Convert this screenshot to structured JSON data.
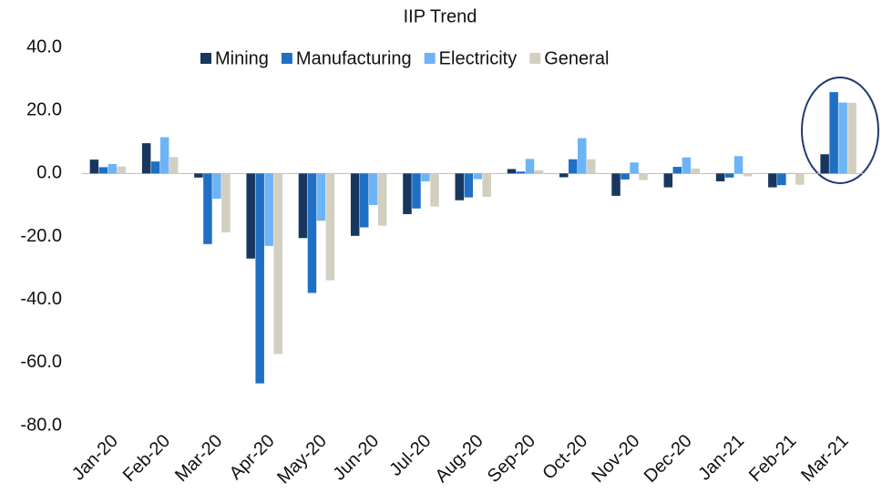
{
  "chart_data": {
    "type": "bar",
    "title": "IIP Trend",
    "categories": [
      "Jan-20",
      "Feb-20",
      "Mar-20",
      "Apr-20",
      "May-20",
      "Jun-20",
      "Jul-20",
      "Aug-20",
      "Sep-20",
      "Oct-20",
      "Nov-20",
      "Dec-20",
      "Jan-21",
      "Feb-21",
      "Mar-21"
    ],
    "series": [
      {
        "name": "Mining",
        "color": "#17375e",
        "values": [
          4.4,
          9.6,
          -1.3,
          -27.0,
          -20.5,
          -19.8,
          -12.9,
          -8.5,
          1.4,
          -1.2,
          -7.1,
          -4.4,
          -2.5,
          -4.4,
          6.1
        ]
      },
      {
        "name": "Manufacturing",
        "color": "#1f6fc5",
        "values": [
          2.0,
          3.8,
          -22.4,
          -66.6,
          -37.9,
          -17.1,
          -11.1,
          -7.6,
          0.6,
          4.5,
          -1.9,
          2.1,
          -1.3,
          -3.7,
          25.8
        ]
      },
      {
        "name": "Electricity",
        "color": "#6cb4f5",
        "values": [
          3.0,
          11.5,
          -8.0,
          -23.0,
          -15.0,
          -10.0,
          -2.5,
          -1.8,
          4.6,
          11.2,
          3.5,
          5.1,
          5.5,
          0.1,
          22.5
        ]
      },
      {
        "name": "General",
        "color": "#d2cfc0",
        "values": [
          2.2,
          5.2,
          -18.7,
          -57.3,
          -33.9,
          -16.6,
          -10.5,
          -7.4,
          1.0,
          4.5,
          -2.1,
          1.6,
          -0.9,
          -3.6,
          22.4
        ]
      }
    ],
    "ylim": [
      -80,
      40
    ],
    "yticks": [
      {
        "value": -80,
        "label": "-80.0"
      },
      {
        "value": -60,
        "label": "-60.0"
      },
      {
        "value": -40,
        "label": "-40.0"
      },
      {
        "value": -20,
        "label": "-20.0"
      },
      {
        "value": 0,
        "label": "0.0"
      },
      {
        "value": 20,
        "label": "20.0"
      },
      {
        "value": 40,
        "label": "40.0"
      }
    ],
    "grid": false,
    "legend": "top"
  }
}
